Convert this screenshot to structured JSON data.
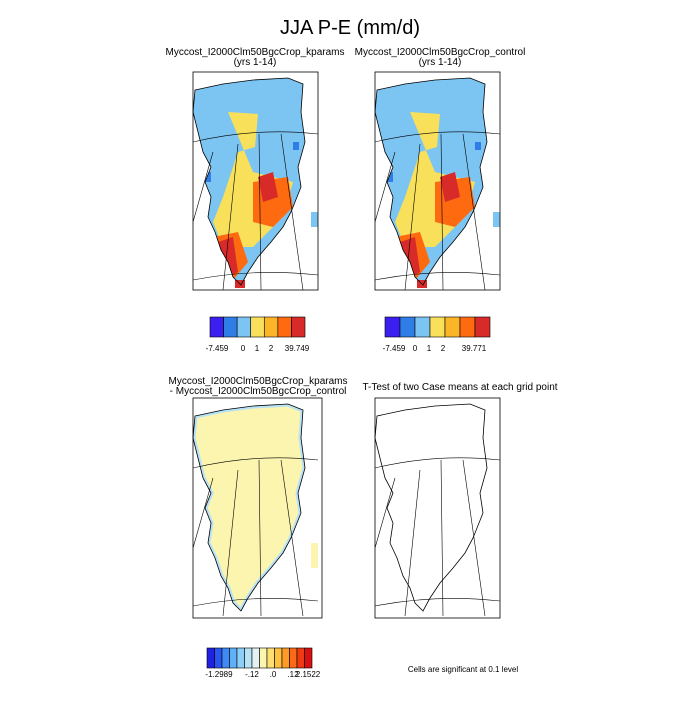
{
  "title": "JJA P-E (mm/d)",
  "panels": [
    {
      "title": "Myccost_I2000Clm50BgcCrop_kparams",
      "subtitle": "(yrs 1-14)",
      "colorbar": {
        "colors": [
          "#3a1ff0",
          "#2f7ee8",
          "#7cc4f2",
          "#f8e05a",
          "#fdb528",
          "#fd6a10",
          "#d92a2a"
        ],
        "labels": [
          "-7.459",
          "0",
          "1",
          "2",
          "39.749"
        ]
      }
    },
    {
      "title": "Myccost_I2000Clm50BgcCrop_control",
      "subtitle": "(yrs 1-14)",
      "colorbar": {
        "colors": [
          "#3a1ff0",
          "#2f7ee8",
          "#7cc4f2",
          "#f8e05a",
          "#fdb528",
          "#fd6a10",
          "#d92a2a"
        ],
        "labels": [
          "-7.459",
          "0",
          "1",
          "2",
          "39.771"
        ]
      }
    },
    {
      "title": "Myccost_I2000Clm50BgcCrop_kparams",
      "subtitle": "- Myccost_I2000Clm50BgcCrop_control",
      "colorbar": {
        "colors": [
          "#2020e0",
          "#2a55f0",
          "#3f8af5",
          "#5fb0f8",
          "#8cd0fa",
          "#b8e2f6",
          "#e2f2f2",
          "#fbf5b0",
          "#fde070",
          "#fdc040",
          "#fd9a28",
          "#fa6a18",
          "#f03a14",
          "#d81010"
        ],
        "labels": [
          "-1.2989",
          "-.12",
          ".0",
          ".12",
          "2.1522"
        ]
      }
    },
    {
      "title": "T-Test of two Case means at each grid point"
    }
  ],
  "note": "Cells are significant at 0.1 level"
}
